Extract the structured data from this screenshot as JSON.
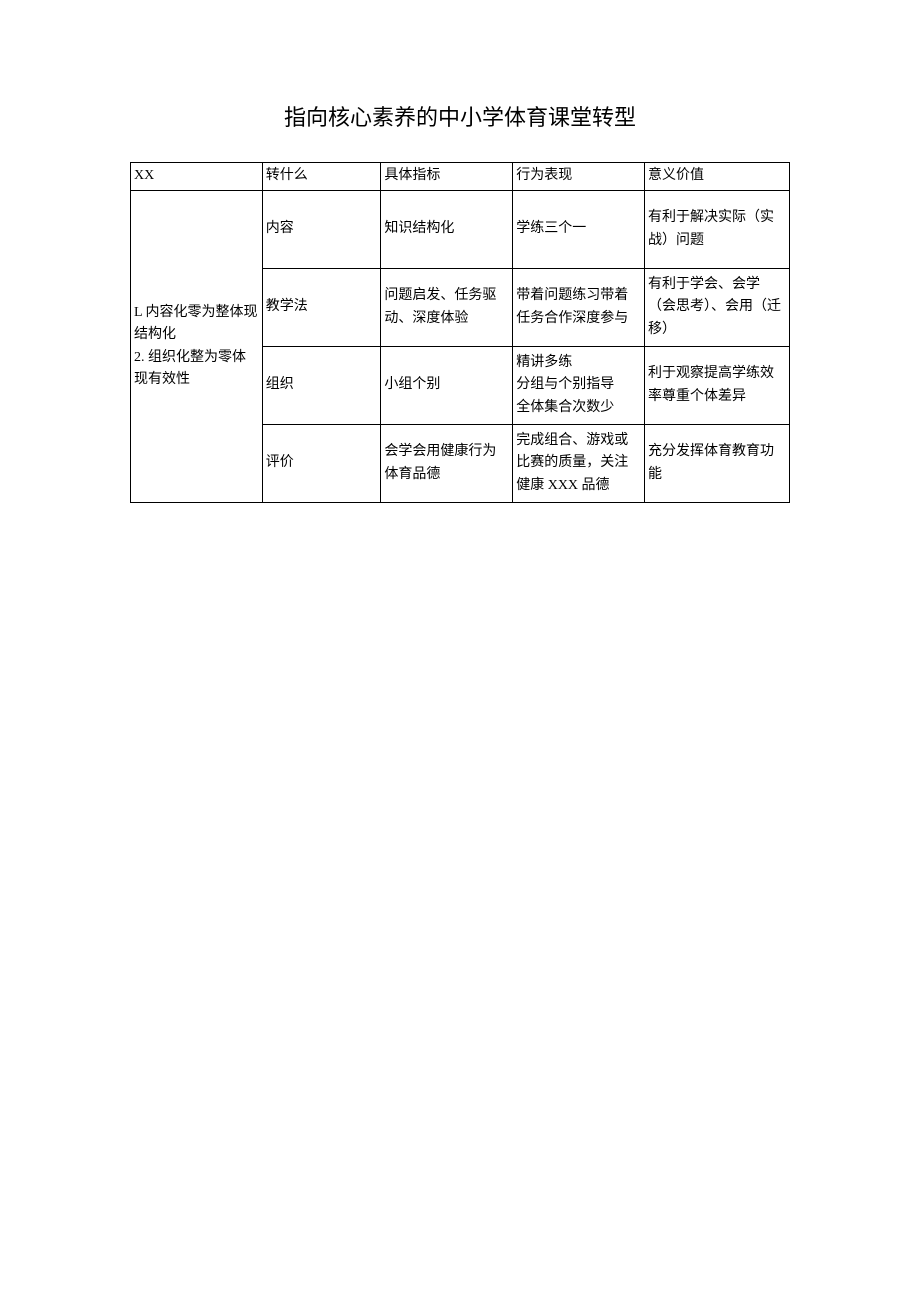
{
  "title": "指向核心素养的中小学体育课堂转型",
  "header": {
    "col1": "XX",
    "col2": "转什么",
    "col3": "具体指标",
    "col4": "行为表现",
    "col5": "意义价值"
  },
  "merged_col1": "L 内容化零为整体现结构化\n2. 组织化整为零体现有效性",
  "rows": [
    {
      "col2": "内容",
      "col3": "知识结构化",
      "col4": "学练三个一",
      "col5": "有利于解决实际（实战）问题"
    },
    {
      "col2": "教学法",
      "col3": "问题启发、任务驱动、深度体验",
      "col4": "带着问题练习带着任务合作深度参与",
      "col5": "有利于学会、会学（会思考）、会用（迁移）"
    },
    {
      "col2": "组织",
      "col3": "小组个别",
      "col4": "精讲多练\n分组与个别指导\n全体集合次数少",
      "col5": "利于观察提高学练效率尊重个体差异"
    },
    {
      "col2": "评价",
      "col3": "会学会用健康行为体育品德",
      "col4": "完成组合、游戏或比赛的质量，关注健康 XXX 品德",
      "col5": "充分发挥体育教育功能"
    }
  ]
}
